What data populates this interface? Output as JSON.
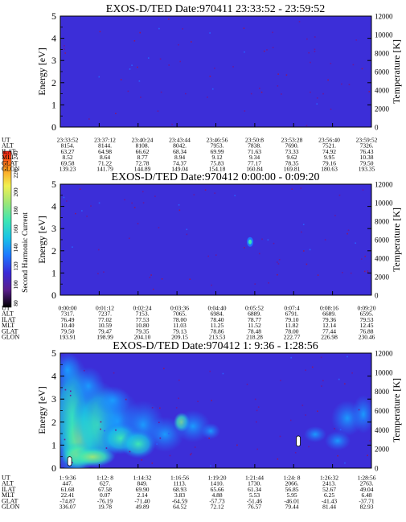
{
  "colorbar": {
    "label": "Second Harmonic Current",
    "ticks": [
      "80",
      "100",
      "120",
      "140",
      "160",
      "180",
      "200",
      "220",
      "240"
    ],
    "colors": [
      "#000000",
      "#5a1e8c",
      "#3a2ad8",
      "#1e78ff",
      "#19c3e6",
      "#3ee6b4",
      "#9be678",
      "#f0f050",
      "#ff9a1e",
      "#ff1e14"
    ]
  },
  "chart_data": [
    {
      "type": "heatmap",
      "title": "EXOS-D/TED   Date:970411  23:33:52 - 23:59:52",
      "ylabel": "Energy [eV]",
      "ylabel_right": "Temperature [K]",
      "ylim": [
        0,
        5
      ],
      "yticks": [
        "0",
        "1",
        "2",
        "3",
        "4",
        "5"
      ],
      "y2lim": [
        0,
        12000
      ],
      "y2ticks": [
        "0",
        "2000",
        "4000",
        "6000",
        "8000",
        "10000",
        "12000"
      ],
      "background": "#3c2ed8",
      "table_rows": [
        {
          "label": "UT",
          "values": [
            "23:33:52",
            "23:37:12",
            "23:40:24",
            "23:43:44",
            "23:46:56",
            "23:50:8",
            "23:53:28",
            "23:56:40",
            "23:59:52"
          ]
        },
        {
          "label": "ALT",
          "values": [
            "8154.",
            "8144.",
            "8108.",
            "8042.",
            "7953.",
            "7838.",
            "7690.",
            "7521.",
            "7326."
          ]
        },
        {
          "label": "ILAT",
          "values": [
            "63.27",
            "64.98",
            "66.62",
            "68.34",
            "69.99",
            "71.63",
            "73.33",
            "74.92",
            "76.43"
          ]
        },
        {
          "label": "MLT",
          "values": [
            "8.52",
            "8.64",
            "8.77",
            "8.94",
            "9.12",
            "9.34",
            "9.62",
            "9.95",
            "10.38"
          ]
        },
        {
          "label": "GLAT",
          "values": [
            "69.58",
            "71.22",
            "72.78",
            "74.37",
            "75.83",
            "77.17",
            "78.35",
            "79.16",
            "79.50"
          ]
        },
        {
          "label": "GLON",
          "values": [
            "139.23",
            "141.79",
            "144.89",
            "149.04",
            "154.18",
            "160.84",
            "169.81",
            "180.63",
            "193.35"
          ]
        }
      ],
      "markers": []
    },
    {
      "type": "heatmap",
      "title": "EXOS-D/TED   Date:970412  0:00:00 - 0:09:20",
      "ylabel": "Energy [eV]",
      "ylabel_right": "Temperature [K]",
      "ylim": [
        0,
        5
      ],
      "yticks": [
        "0",
        "1",
        "2",
        "3",
        "4",
        "5"
      ],
      "y2lim": [
        0,
        12000
      ],
      "y2ticks": [
        "0",
        "2000",
        "4000",
        "6000",
        "8000",
        "10000",
        "12000"
      ],
      "background": "#3c2ed8",
      "table_rows": [
        {
          "label": "UT",
          "values": [
            "0:00:00",
            "0:01:12",
            "0:02:24",
            "0:03:36",
            "0:04:40",
            "0:05:52",
            "0:07:4",
            "0:08:16",
            "0:09:20"
          ]
        },
        {
          "label": "ALT",
          "values": [
            "7317.",
            "7237.",
            "7153.",
            "7065.",
            "6984.",
            "6889.",
            "6791.",
            "6689.",
            "6595."
          ]
        },
        {
          "label": "ILAT",
          "values": [
            "76.49",
            "77.02",
            "77.53",
            "78.00",
            "78.40",
            "78.77",
            "79.10",
            "79.36",
            "79.53"
          ]
        },
        {
          "label": "MLT",
          "values": [
            "10.40",
            "10.59",
            "10.80",
            "11.03",
            "11.25",
            "11.52",
            "11.82",
            "12.14",
            "12.45"
          ]
        },
        {
          "label": "GLAT",
          "values": [
            "79.50",
            "79.47",
            "79.35",
            "79.13",
            "78.86",
            "78.48",
            "78.00",
            "77.44",
            "76.88"
          ]
        },
        {
          "label": "GLON",
          "values": [
            "193.91",
            "198.99",
            "204.10",
            "209.15",
            "213.53",
            "218.28",
            "222.77",
            "226.98",
            "230.46"
          ]
        }
      ],
      "markers": [
        {
          "x": 0.61,
          "energy": 2.4,
          "color": "#1e78ff"
        }
      ]
    },
    {
      "type": "heatmap",
      "title": "EXOS-D/TED   Date:970412  1: 9:36 - 1:28:56",
      "ylabel": "Energy [eV]",
      "ylabel_right": "Temperature [K]",
      "ylim": [
        0,
        5
      ],
      "yticks": [
        "0",
        "1",
        "2",
        "3",
        "4",
        "5"
      ],
      "y2lim": [
        0,
        12000
      ],
      "y2ticks": [
        "0",
        "2000",
        "4000",
        "6000",
        "8000",
        "10000",
        "12000"
      ],
      "background": "#3c2ed8",
      "table_rows": [
        {
          "label": "UT",
          "values": [
            "1: 9:36",
            "1:12: 8",
            "1:14:32",
            "1:16:56",
            "1:19:20",
            "1:21:44",
            "1:24: 8",
            "1:26:32",
            "1:28:56"
          ]
        },
        {
          "label": "ALT",
          "values": [
            "447.",
            "627.",
            "849.",
            "1113.",
            "1410.",
            "1730.",
            "2066.",
            "2413.",
            "2763."
          ]
        },
        {
          "label": "ILAT",
          "values": [
            "61.68",
            "67.58",
            "69.90",
            "68.93",
            "65.66",
            "61.34",
            "56.85",
            "52.67",
            "49.04"
          ]
        },
        {
          "label": "MLT",
          "values": [
            "22.41",
            "0.07",
            "2.14",
            "3.83",
            "4.88",
            "5.53",
            "5.95",
            "6.25",
            "6.48"
          ]
        },
        {
          "label": "GLAT",
          "values": [
            "-74.87",
            "-76.19",
            "-71.40",
            "-64.59",
            "-57.73",
            "-51.46",
            "-46.01",
            "-41.43",
            "-37.71"
          ]
        },
        {
          "label": "GLON",
          "values": [
            "336.07",
            "19.78",
            "49.89",
            "64.52",
            "72.12",
            "76.57",
            "79.44",
            "81.44",
            "82.93"
          ]
        }
      ],
      "temperature_markers": [
        {
          "x": 0.03,
          "energy_low": 0.1,
          "energy_high": 0.5
        },
        {
          "x": 0.765,
          "energy_low": 0.95,
          "energy_high": 1.4
        }
      ]
    }
  ]
}
